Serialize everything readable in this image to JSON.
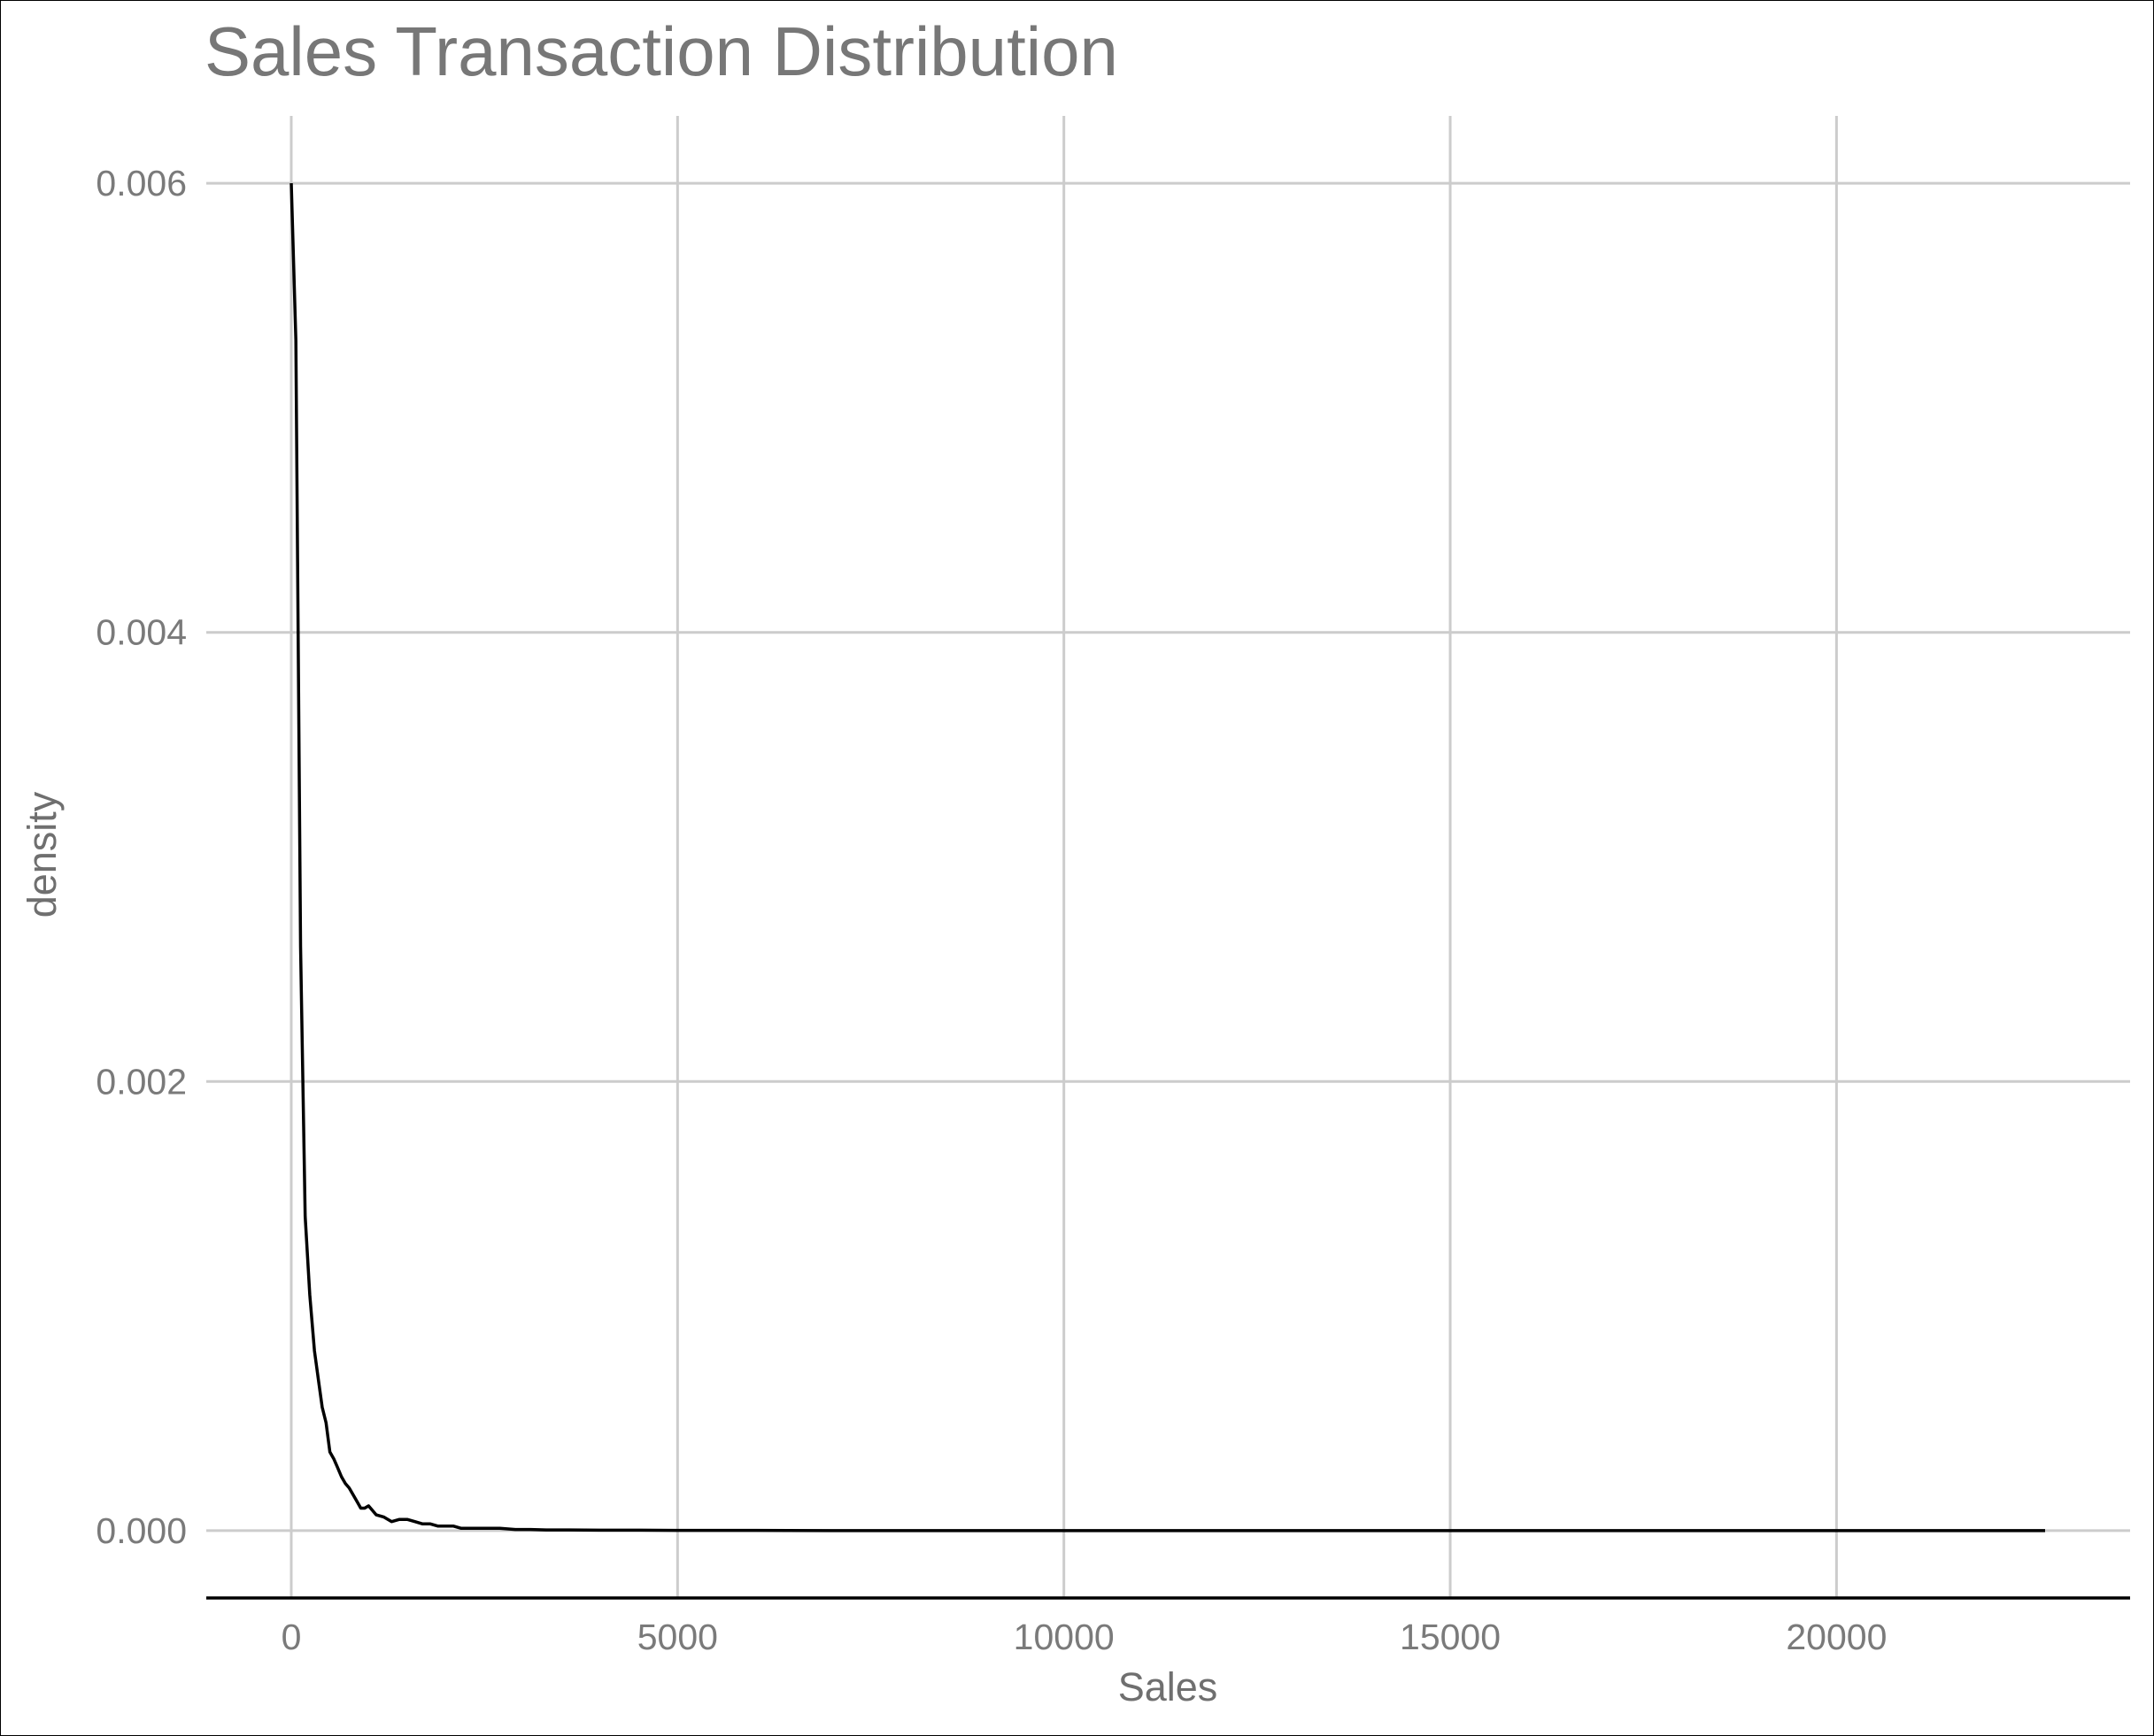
{
  "chart_data": {
    "type": "line",
    "title": "Sales Transaction Distribution",
    "xlabel": "Sales",
    "ylabel": "density",
    "xlim": [
      -1100,
      23800
    ],
    "ylim": [
      -0.0003,
      0.0063
    ],
    "x_ticks": [
      0,
      5000,
      10000,
      15000,
      20000
    ],
    "x_tick_labels": [
      "0",
      "5000",
      "10000",
      "15000",
      "20000"
    ],
    "y_ticks": [
      0,
      0.002,
      0.004,
      0.006
    ],
    "y_tick_labels": [
      "0.000",
      "0.002",
      "0.004",
      "0.006"
    ],
    "grid": true,
    "legend": "none",
    "line_color": "#000000",
    "series": [
      {
        "x": [
          0,
          60,
          120,
          180,
          240,
          300,
          360,
          400,
          450,
          500,
          550,
          600,
          650,
          700,
          750,
          800,
          850,
          900,
          950,
          1000,
          1100,
          1200,
          1300,
          1400,
          1500,
          1600,
          1700,
          1800,
          1900,
          2000,
          2100,
          2200,
          2300,
          2400,
          2500,
          2700,
          2900,
          3100,
          3300,
          3600,
          4000,
          4500,
          5000,
          5500,
          6000,
          7000,
          8000,
          9000,
          10000,
          11000,
          12000,
          13000,
          14000,
          15000,
          16000,
          17000,
          18000,
          19000,
          20000,
          21000,
          22000,
          22700
        ],
        "y": [
          0.006,
          0.0053,
          0.0026,
          0.0014,
          0.00105,
          0.0008,
          0.00065,
          0.00055,
          0.00048,
          0.00035,
          0.00032,
          0.00028,
          0.00024,
          0.00021,
          0.00019,
          0.00016,
          0.00013,
          0.0001,
          0.0001,
          0.00011,
          7e-05,
          6e-05,
          4e-05,
          5e-05,
          5e-05,
          4e-05,
          3e-05,
          3e-05,
          2e-05,
          2e-05,
          2e-05,
          1e-05,
          1e-05,
          1e-05,
          1e-05,
          1e-05,
          5e-06,
          5e-06,
          3e-06,
          3e-06,
          2e-06,
          2e-06,
          1e-06,
          1e-06,
          1e-06,
          0,
          0,
          0,
          0,
          0,
          0,
          0,
          0,
          0,
          0,
          0,
          0,
          0,
          0,
          0,
          0,
          0
        ]
      }
    ]
  }
}
